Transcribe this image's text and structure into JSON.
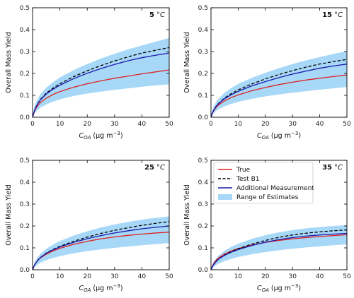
{
  "chart_data": [
    {
      "type": "line",
      "panel_label": "5",
      "panel_unit": "°C",
      "xlabel_main": "C",
      "xlabel_sub": "OA",
      "xlabel_unit": "(μg m",
      "xlabel_exp": "−3",
      "xlabel_close": ")",
      "ylabel": "Overall Mass Yield",
      "xlim": [
        0,
        50
      ],
      "ylim": [
        0,
        0.5
      ],
      "xticks": [
        0,
        10,
        20,
        30,
        40,
        50
      ],
      "yticks": [
        0.0,
        0.1,
        0.2,
        0.3,
        0.4,
        0.5
      ],
      "xtick_labels": [
        "0",
        "10",
        "20",
        "30",
        "40",
        "50"
      ],
      "ytick_labels": [
        "0.0",
        "0.1",
        "0.2",
        "0.3",
        "0.4",
        "0.5"
      ],
      "x": [
        0,
        0.5,
        1,
        2,
        3,
        5,
        7.5,
        10,
        15,
        20,
        25,
        30,
        35,
        40,
        45,
        50
      ],
      "band_lower": [
        0,
        0.012,
        0.022,
        0.035,
        0.045,
        0.058,
        0.071,
        0.082,
        0.097,
        0.108,
        0.117,
        0.125,
        0.132,
        0.139,
        0.145,
        0.15
      ],
      "band_upper": [
        0,
        0.04,
        0.062,
        0.088,
        0.107,
        0.135,
        0.16,
        0.182,
        0.215,
        0.243,
        0.268,
        0.29,
        0.31,
        0.328,
        0.345,
        0.362
      ],
      "series": [
        {
          "name": "True",
          "color": "#dd2222",
          "dash": "solid",
          "values": [
            0,
            0.02,
            0.035,
            0.055,
            0.068,
            0.087,
            0.104,
            0.117,
            0.137,
            0.153,
            0.166,
            0.178,
            0.188,
            0.198,
            0.207,
            0.216
          ]
        },
        {
          "name": "Test B1",
          "color": "#000000",
          "dash": "dashed",
          "values": [
            0,
            0.022,
            0.04,
            0.065,
            0.083,
            0.11,
            0.133,
            0.153,
            0.185,
            0.212,
            0.236,
            0.257,
            0.276,
            0.293,
            0.306,
            0.318
          ]
        },
        {
          "name": "Additional Measurement",
          "color": "#1a1aaa",
          "dash": "solid",
          "values": [
            0,
            0.022,
            0.039,
            0.063,
            0.081,
            0.106,
            0.128,
            0.146,
            0.176,
            0.201,
            0.222,
            0.241,
            0.258,
            0.272,
            0.283,
            0.293
          ]
        }
      ]
    },
    {
      "type": "line",
      "panel_label": "15",
      "panel_unit": "°C",
      "xlabel_main": "C",
      "xlabel_sub": "OA",
      "xlabel_unit": "(μg m",
      "xlabel_exp": "−3",
      "xlabel_close": ")",
      "ylabel": "Overall Mass Yield",
      "xlim": [
        0,
        50
      ],
      "ylim": [
        0,
        0.5
      ],
      "xticks": [
        0,
        10,
        20,
        30,
        40,
        50
      ],
      "yticks": [
        0.0,
        0.1,
        0.2,
        0.3,
        0.4,
        0.5
      ],
      "xtick_labels": [
        "0",
        "10",
        "20",
        "30",
        "40",
        "50"
      ],
      "ytick_labels": [
        "0.0",
        "0.1",
        "0.2",
        "0.3",
        "0.4",
        "0.5"
      ],
      "x": [
        0,
        0.5,
        1,
        2,
        3,
        5,
        7.5,
        10,
        15,
        20,
        25,
        30,
        35,
        40,
        45,
        50
      ],
      "band_lower": [
        0,
        0.01,
        0.018,
        0.03,
        0.038,
        0.05,
        0.061,
        0.07,
        0.084,
        0.095,
        0.104,
        0.112,
        0.119,
        0.126,
        0.132,
        0.138
      ],
      "band_upper": [
        0,
        0.032,
        0.05,
        0.072,
        0.088,
        0.112,
        0.134,
        0.152,
        0.18,
        0.203,
        0.224,
        0.243,
        0.26,
        0.275,
        0.289,
        0.302
      ],
      "series": [
        {
          "name": "True",
          "color": "#dd2222",
          "dash": "solid",
          "values": [
            0,
            0.018,
            0.03,
            0.047,
            0.058,
            0.075,
            0.09,
            0.102,
            0.121,
            0.136,
            0.149,
            0.16,
            0.17,
            0.178,
            0.186,
            0.193
          ]
        },
        {
          "name": "Test B1",
          "color": "#000000",
          "dash": "dashed",
          "values": [
            0,
            0.018,
            0.032,
            0.052,
            0.066,
            0.088,
            0.108,
            0.125,
            0.152,
            0.175,
            0.195,
            0.213,
            0.229,
            0.243,
            0.254,
            0.264
          ]
        },
        {
          "name": "Additional Measurement",
          "color": "#1a1aaa",
          "dash": "solid",
          "values": [
            0,
            0.018,
            0.032,
            0.051,
            0.064,
            0.085,
            0.103,
            0.118,
            0.143,
            0.163,
            0.181,
            0.197,
            0.211,
            0.224,
            0.234,
            0.243
          ]
        }
      ]
    },
    {
      "type": "line",
      "panel_label": "25",
      "panel_unit": "°C",
      "xlabel_main": "C",
      "xlabel_sub": "OA",
      "xlabel_unit": "(μg m",
      "xlabel_exp": "−3",
      "xlabel_close": ")",
      "ylabel": "Overall Mass Yield",
      "xlim": [
        0,
        50
      ],
      "ylim": [
        0,
        0.5
      ],
      "xticks": [
        0,
        10,
        20,
        30,
        40,
        50
      ],
      "yticks": [
        0.0,
        0.1,
        0.2,
        0.3,
        0.4,
        0.5
      ],
      "xtick_labels": [
        "0",
        "10",
        "20",
        "30",
        "40",
        "50"
      ],
      "ytick_labels": [
        "0.0",
        "0.1",
        "0.2",
        "0.3",
        "0.4",
        "0.5"
      ],
      "x": [
        0,
        0.5,
        1,
        2,
        3,
        5,
        7.5,
        10,
        15,
        20,
        25,
        30,
        35,
        40,
        45,
        50
      ],
      "band_lower": [
        0,
        0.008,
        0.015,
        0.025,
        0.033,
        0.044,
        0.054,
        0.062,
        0.075,
        0.085,
        0.093,
        0.1,
        0.106,
        0.112,
        0.117,
        0.122
      ],
      "band_upper": [
        0,
        0.025,
        0.04,
        0.06,
        0.074,
        0.096,
        0.115,
        0.131,
        0.156,
        0.176,
        0.193,
        0.207,
        0.219,
        0.229,
        0.237,
        0.244
      ],
      "series": [
        {
          "name": "True",
          "color": "#dd2222",
          "dash": "solid",
          "values": [
            0,
            0.016,
            0.028,
            0.044,
            0.055,
            0.071,
            0.086,
            0.098,
            0.116,
            0.13,
            0.141,
            0.15,
            0.157,
            0.163,
            0.168,
            0.172
          ]
        },
        {
          "name": "Test B1",
          "color": "#000000",
          "dash": "dashed",
          "values": [
            0,
            0.016,
            0.028,
            0.045,
            0.057,
            0.076,
            0.093,
            0.107,
            0.13,
            0.149,
            0.166,
            0.18,
            0.192,
            0.203,
            0.212,
            0.22
          ]
        },
        {
          "name": "Additional Measurement",
          "color": "#1a1aaa",
          "dash": "solid",
          "values": [
            0,
            0.016,
            0.028,
            0.045,
            0.057,
            0.075,
            0.091,
            0.104,
            0.125,
            0.142,
            0.156,
            0.168,
            0.178,
            0.187,
            0.194,
            0.2
          ]
        }
      ]
    },
    {
      "type": "line",
      "panel_label": "35",
      "panel_unit": "°C",
      "xlabel_main": "C",
      "xlabel_sub": "OA",
      "xlabel_unit": "(μg m",
      "xlabel_exp": "−3",
      "xlabel_close": ")",
      "ylabel": "Overall Mass Yield",
      "xlim": [
        0,
        50
      ],
      "ylim": [
        0,
        0.5
      ],
      "xticks": [
        0,
        10,
        20,
        30,
        40,
        50
      ],
      "yticks": [
        0.0,
        0.1,
        0.2,
        0.3,
        0.4,
        0.5
      ],
      "xtick_labels": [
        "0",
        "10",
        "20",
        "30",
        "40",
        "50"
      ],
      "ytick_labels": [
        "0.0",
        "0.1",
        "0.2",
        "0.3",
        "0.4",
        "0.5"
      ],
      "x": [
        0,
        0.5,
        1,
        2,
        3,
        5,
        7.5,
        10,
        15,
        20,
        25,
        30,
        35,
        40,
        45,
        50
      ],
      "band_lower": [
        0,
        0.007,
        0.013,
        0.022,
        0.029,
        0.04,
        0.05,
        0.058,
        0.071,
        0.081,
        0.089,
        0.096,
        0.102,
        0.107,
        0.112,
        0.116
      ],
      "band_upper": [
        0,
        0.022,
        0.036,
        0.054,
        0.067,
        0.087,
        0.105,
        0.119,
        0.141,
        0.158,
        0.171,
        0.181,
        0.189,
        0.195,
        0.2,
        0.204
      ],
      "series": [
        {
          "name": "True",
          "color": "#dd2222",
          "dash": "solid",
          "values": [
            0,
            0.017,
            0.029,
            0.045,
            0.056,
            0.072,
            0.086,
            0.097,
            0.113,
            0.125,
            0.134,
            0.141,
            0.147,
            0.152,
            0.156,
            0.16
          ]
        },
        {
          "name": "Test B1",
          "color": "#000000",
          "dash": "dashed",
          "values": [
            0,
            0.014,
            0.025,
            0.04,
            0.051,
            0.068,
            0.083,
            0.096,
            0.117,
            0.134,
            0.148,
            0.159,
            0.167,
            0.173,
            0.178,
            0.182
          ]
        },
        {
          "name": "Additional Measurement",
          "color": "#1a1aaa",
          "dash": "solid",
          "values": [
            0,
            0.014,
            0.024,
            0.039,
            0.05,
            0.066,
            0.08,
            0.092,
            0.111,
            0.126,
            0.138,
            0.147,
            0.154,
            0.159,
            0.163,
            0.166
          ]
        }
      ]
    }
  ],
  "legend": {
    "panel_index": 3,
    "placement": "top-left",
    "band_color": "#a8d8f8",
    "entries": [
      {
        "label": "True",
        "kind": "line",
        "color": "#dd2222",
        "dash": "solid"
      },
      {
        "label": "Test B1",
        "kind": "line",
        "color": "#000000",
        "dash": "dashed"
      },
      {
        "label": "Additional Measurement",
        "kind": "line",
        "color": "#1a1aaa",
        "dash": "solid"
      },
      {
        "label": "Range of Estimates",
        "kind": "patch",
        "color": "#a8d8f8",
        "dash": "solid"
      }
    ]
  },
  "colors": {
    "band": "#a8d8f8",
    "axes": "#000000"
  }
}
